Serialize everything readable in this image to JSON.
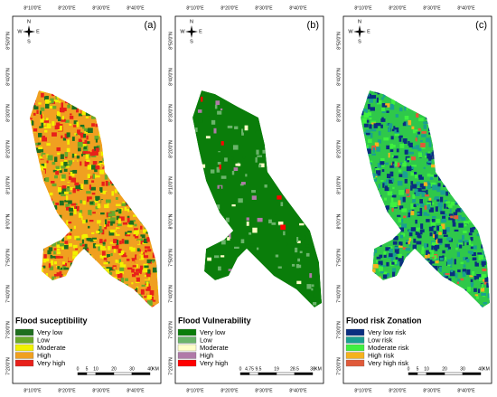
{
  "lon_labels": [
    "8°10'0\"E",
    "8°20'0\"E",
    "8°30'0\"E",
    "8°40'0\"E"
  ],
  "lat_labels": [
    "8°50'0\"N",
    "8°40'0\"N",
    "8°30'0\"N",
    "8°20'0\"N",
    "8°10'0\"N",
    "8°0'0\"N",
    "7°50'0\"N",
    "7°40'0\"N",
    "7°30'0\"N",
    "7°20'0\"N"
  ],
  "compass": {
    "n": "N",
    "s": "S",
    "w": "W",
    "e": "E"
  },
  "panels": [
    {
      "label": "(a)",
      "legend_title": "Flood suceptibility",
      "legend": [
        {
          "label": "Very low",
          "color": "#1e6e1e"
        },
        {
          "label": "Low",
          "color": "#6aaa2a"
        },
        {
          "label": "Moderate",
          "color": "#f2f200"
        },
        {
          "label": "High",
          "color": "#f0a020"
        },
        {
          "label": "Very high",
          "color": "#e8201a"
        }
      ],
      "scale": [
        "0",
        "5",
        "10",
        "20",
        "30",
        "40",
        "KM"
      ]
    },
    {
      "label": "(b)",
      "legend_title": "Flood Vulnerability",
      "legend": [
        {
          "label": "Very low",
          "color": "#0a7d0a"
        },
        {
          "label": "Low",
          "color": "#6ab46a"
        },
        {
          "label": "Moderate",
          "color": "#ffffc8"
        },
        {
          "label": "High",
          "color": "#b07aa8"
        },
        {
          "label": "Very high",
          "color": "#ff0000"
        }
      ],
      "scale": [
        "0",
        "4.75",
        "9.5",
        "19",
        "28.5",
        "38",
        "KM"
      ]
    },
    {
      "label": "(c)",
      "legend_title": "Flood risk Zonation",
      "legend": [
        {
          "label": "Very low risk",
          "color": "#0a2e80"
        },
        {
          "label": "Low risk",
          "color": "#1aa090"
        },
        {
          "label": "Moderate risk",
          "color": "#3ff03f"
        },
        {
          "label": "High risk",
          "color": "#f5b21e"
        },
        {
          "label": "Very high risk",
          "color": "#e05a3a"
        }
      ],
      "scale": [
        "0",
        "5",
        "10",
        "20",
        "30",
        "40",
        "KM"
      ]
    }
  ]
}
